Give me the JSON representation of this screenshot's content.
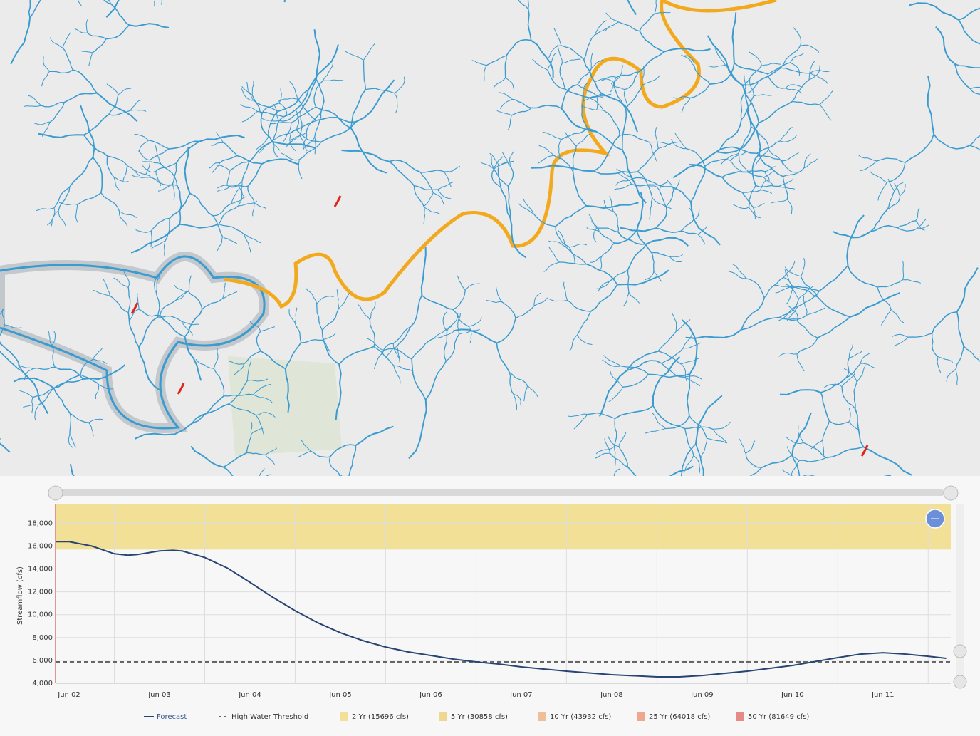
{
  "chart_data": {
    "type": "line",
    "y_label": "Streamflow (cfs)",
    "xlim": [
      1.85,
      11.75
    ],
    "xticks": [
      {
        "value": 2,
        "label": "Jun 02"
      },
      {
        "value": 3,
        "label": "Jun 03"
      },
      {
        "value": 4,
        "label": "Jun 04"
      },
      {
        "value": 5,
        "label": "Jun 05"
      },
      {
        "value": 6,
        "label": "Jun 06"
      },
      {
        "value": 7,
        "label": "Jun 07"
      },
      {
        "value": 8,
        "label": "Jun 08"
      },
      {
        "value": 9,
        "label": "Jun 09"
      },
      {
        "value": 10,
        "label": "Jun 10"
      },
      {
        "value": 11,
        "label": "Jun 11"
      }
    ],
    "ylim": [
      4000,
      19700
    ],
    "yticks": [
      {
        "value": 4000,
        "label": "4,000"
      },
      {
        "value": 6000,
        "label": "6,000"
      },
      {
        "value": 8000,
        "label": "8,000"
      },
      {
        "value": 10000,
        "label": "10,000"
      },
      {
        "value": 12000,
        "label": "12,000"
      },
      {
        "value": 14000,
        "label": "14,000"
      },
      {
        "value": 16000,
        "label": "16,000"
      },
      {
        "value": 18000,
        "label": "18,000"
      }
    ],
    "grid": true,
    "x": [
      1.85,
      2,
      2.25,
      2.5,
      2.65,
      2.75,
      3,
      3.15,
      3.25,
      3.5,
      3.75,
      4,
      4.25,
      4.5,
      4.75,
      5,
      5.25,
      5.5,
      5.75,
      6,
      6.25,
      6.5,
      6.75,
      7,
      7.5,
      8,
      8.5,
      8.75,
      9,
      9.5,
      10,
      10.5,
      10.75,
      11,
      11.25,
      11.5,
      11.7
    ],
    "series": [
      {
        "name": "Forecast",
        "color": "#274472",
        "values": [
          16380,
          16380,
          16000,
          15320,
          15200,
          15250,
          15570,
          15630,
          15570,
          15000,
          14080,
          12830,
          11530,
          10340,
          9290,
          8420,
          7730,
          7170,
          6740,
          6430,
          6110,
          5870,
          5680,
          5430,
          5060,
          4750,
          4560,
          4560,
          4680,
          5060,
          5560,
          6240,
          6550,
          6670,
          6550,
          6360,
          6180
        ]
      }
    ],
    "threshold": {
      "name": "High Water Threshold",
      "value": 5870,
      "color": "#666666"
    },
    "return_periods": [
      {
        "name": "2 Yr (15696 cfs)",
        "value": 15696,
        "color": "#f1e096"
      },
      {
        "name": "5 Yr (30858 cfs)",
        "value": 30858,
        "color": "#f0d78f"
      },
      {
        "name": "10 Yr (43932 cfs)",
        "value": 43932,
        "color": "#efbf98"
      },
      {
        "name": "25 Yr (64018 cfs)",
        "value": 64018,
        "color": "#eda88e"
      },
      {
        "name": "50 Yr (81649 cfs)",
        "value": 81649,
        "color": "#e58b86"
      }
    ]
  }
}
